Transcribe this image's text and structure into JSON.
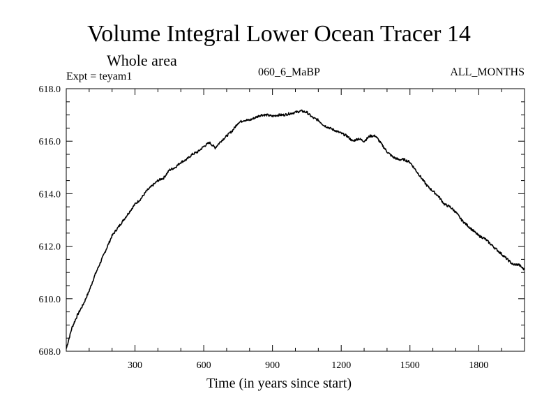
{
  "chart_data": {
    "type": "line",
    "title": "Volume Integral Lower Ocean Tracer 14",
    "subtitle": "Whole area",
    "expt_label": "Expt = teyam1",
    "period_label": "060_6_MaBP",
    "months_label": "ALL_MONTHS",
    "xlabel": "Time (in years since start)",
    "ylabel": "",
    "xlim": [
      0,
      2000
    ],
    "ylim": [
      608.0,
      618.0
    ],
    "x_ticks": [
      300,
      600,
      900,
      1200,
      1500,
      1800
    ],
    "x_tick_labels": [
      "300",
      "600",
      "900",
      "1200",
      "1500",
      "1800"
    ],
    "y_ticks": [
      608.0,
      610.0,
      612.0,
      614.0,
      616.0,
      618.0
    ],
    "y_tick_labels": [
      "608.0",
      "610.0",
      "612.0",
      "614.0",
      "616.0",
      "618.0"
    ],
    "series": [
      {
        "name": "Volume Integral Lower Ocean Tracer 14",
        "x": [
          0,
          25,
          50,
          75,
          100,
          125,
          150,
          175,
          200,
          225,
          250,
          275,
          300,
          325,
          350,
          375,
          400,
          425,
          450,
          475,
          500,
          525,
          550,
          575,
          600,
          625,
          650,
          675,
          700,
          725,
          750,
          775,
          800,
          825,
          850,
          875,
          900,
          925,
          950,
          975,
          1000,
          1025,
          1050,
          1075,
          1100,
          1125,
          1150,
          1175,
          1200,
          1225,
          1250,
          1275,
          1300,
          1325,
          1350,
          1375,
          1400,
          1425,
          1450,
          1475,
          1500,
          1525,
          1550,
          1575,
          1600,
          1625,
          1650,
          1675,
          1700,
          1725,
          1750,
          1775,
          1800,
          1825,
          1850,
          1875,
          1900,
          1925,
          1950,
          1975,
          2000
        ],
        "values": [
          608.1,
          608.9,
          609.4,
          609.8,
          610.3,
          610.9,
          611.4,
          611.9,
          612.4,
          612.7,
          613.0,
          613.3,
          613.6,
          613.8,
          614.1,
          614.3,
          614.5,
          614.6,
          614.9,
          615.0,
          615.2,
          615.3,
          615.5,
          615.6,
          615.8,
          615.95,
          615.75,
          616.0,
          616.2,
          616.4,
          616.7,
          616.8,
          616.8,
          616.9,
          617.0,
          617.0,
          616.95,
          617.0,
          617.0,
          617.05,
          617.1,
          617.15,
          617.1,
          616.9,
          616.8,
          616.6,
          616.5,
          616.4,
          616.3,
          616.2,
          616.0,
          616.1,
          616.0,
          616.2,
          616.2,
          615.9,
          615.6,
          615.4,
          615.3,
          615.3,
          615.2,
          614.9,
          614.6,
          614.3,
          614.1,
          613.9,
          613.6,
          613.5,
          613.3,
          613.0,
          612.8,
          612.6,
          612.4,
          612.3,
          612.1,
          611.9,
          611.7,
          611.5,
          611.3,
          611.3,
          611.1
        ]
      }
    ]
  }
}
